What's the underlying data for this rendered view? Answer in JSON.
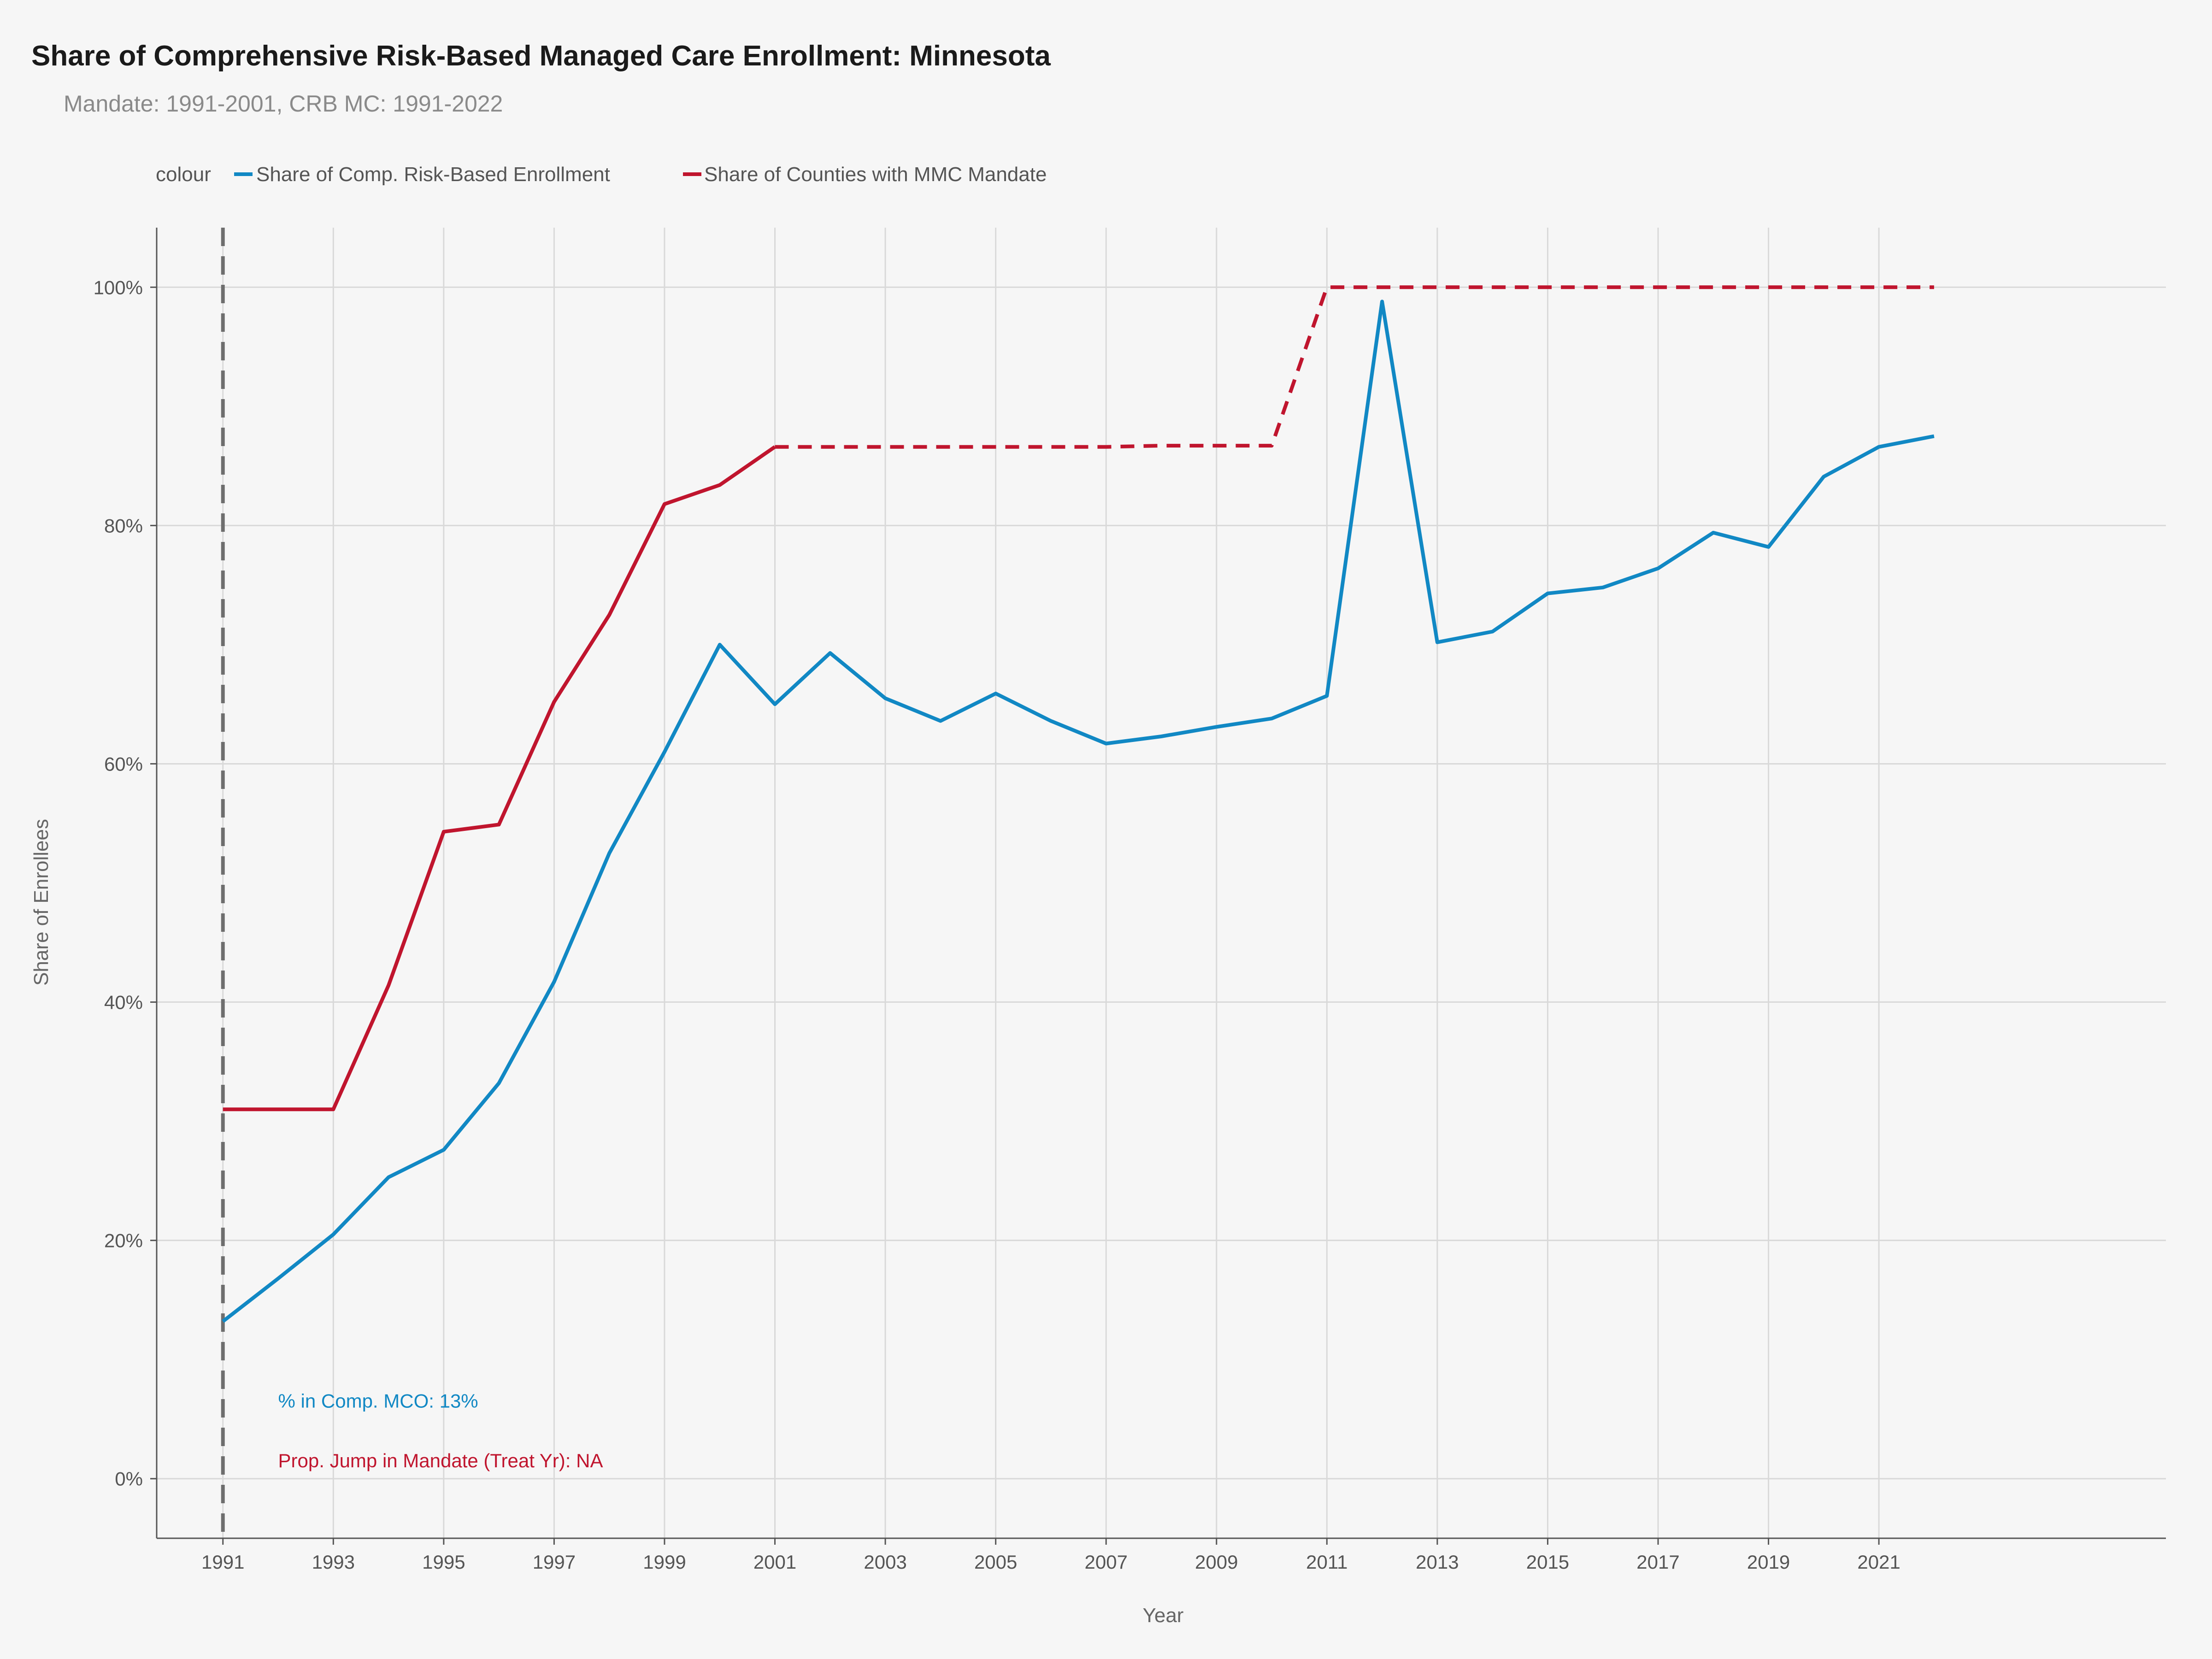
{
  "chart_data": {
    "type": "line",
    "title": "Share of Comprehensive Risk-Based Managed Care Enrollment: Minnesota",
    "subtitle": "Mandate: 1991-2001, CRB MC: 1991-2022",
    "xlabel": "Year",
    "ylabel": "Share of Enrollees",
    "legend_title": "colour",
    "legend_position": "top-left",
    "grid": true,
    "xlim": [
      1989.8,
      2026.2
    ],
    "ylim": [
      -5,
      105
    ],
    "x_ticks": [
      "1991",
      "1993",
      "1995",
      "1997",
      "1999",
      "2001",
      "2003",
      "2005",
      "2007",
      "2009",
      "2011",
      "2013",
      "2015",
      "2017",
      "2019",
      "2021"
    ],
    "y_ticks": [
      "0%",
      "20%",
      "40%",
      "60%",
      "80%",
      "100%"
    ],
    "x_tick_values": [
      1991,
      1993,
      1995,
      1997,
      1999,
      2001,
      2003,
      2005,
      2007,
      2009,
      2011,
      2013,
      2015,
      2017,
      2019,
      2021
    ],
    "y_tick_values": [
      0,
      20,
      40,
      60,
      80,
      100
    ],
    "vline_x": 1991,
    "series": [
      {
        "name": "Share of Comp. Risk-Based Enrollment",
        "color": "#1188c4",
        "style": "solid",
        "x": [
          1991,
          1992,
          1993,
          1994,
          1995,
          1996,
          1997,
          1998,
          1999,
          2000,
          2001,
          2002,
          2003,
          2004,
          2005,
          2006,
          2007,
          2008,
          2009,
          2010,
          2011,
          2012,
          2013,
          2014,
          2015,
          2016,
          2017,
          2018,
          2019,
          2020,
          2021,
          2022
        ],
        "y": [
          13.2,
          16.8,
          20.5,
          25.3,
          27.6,
          33.2,
          41.7,
          52.5,
          61.0,
          70.0,
          65.0,
          69.3,
          65.5,
          63.6,
          65.9,
          63.6,
          61.7,
          62.3,
          63.1,
          63.8,
          65.7,
          98.8,
          70.2,
          71.1,
          74.3,
          74.8,
          76.4,
          79.4,
          78.2,
          84.1,
          86.6,
          87.5
        ]
      },
      {
        "name": "Share of Counties with MMC Mandate",
        "color": "#c0152e",
        "style": "solid",
        "x": [
          1991,
          1992,
          1993,
          1994,
          1995,
          1996,
          1997,
          1998,
          1999,
          2000,
          2001
        ],
        "y": [
          31.0,
          31.0,
          31.0,
          41.4,
          54.3,
          54.9,
          65.2,
          72.5,
          81.8,
          83.4,
          86.6
        ]
      },
      {
        "name": "Share of Counties with MMC Mandate",
        "color": "#c0152e",
        "style": "dashed",
        "x": [
          2001,
          2002,
          2003,
          2004,
          2005,
          2006,
          2007,
          2008,
          2009,
          2010,
          2011,
          2012,
          2013,
          2014,
          2015,
          2016,
          2017,
          2018,
          2019,
          2020,
          2021,
          2022
        ],
        "y": [
          86.6,
          86.6,
          86.6,
          86.6,
          86.6,
          86.6,
          86.6,
          86.7,
          86.7,
          86.7,
          100,
          100,
          100,
          100,
          100,
          100,
          100,
          100,
          100,
          100,
          100,
          100
        ]
      }
    ],
    "annotations": [
      {
        "text": "% in Comp. MCO: 13%",
        "x": 1992,
        "y": 6.5,
        "color": "#1188c4"
      },
      {
        "text": "Prop. Jump in Mandate (Treat Yr): NA",
        "x": 1992,
        "y": 1.5,
        "color": "#c0152e"
      }
    ]
  }
}
